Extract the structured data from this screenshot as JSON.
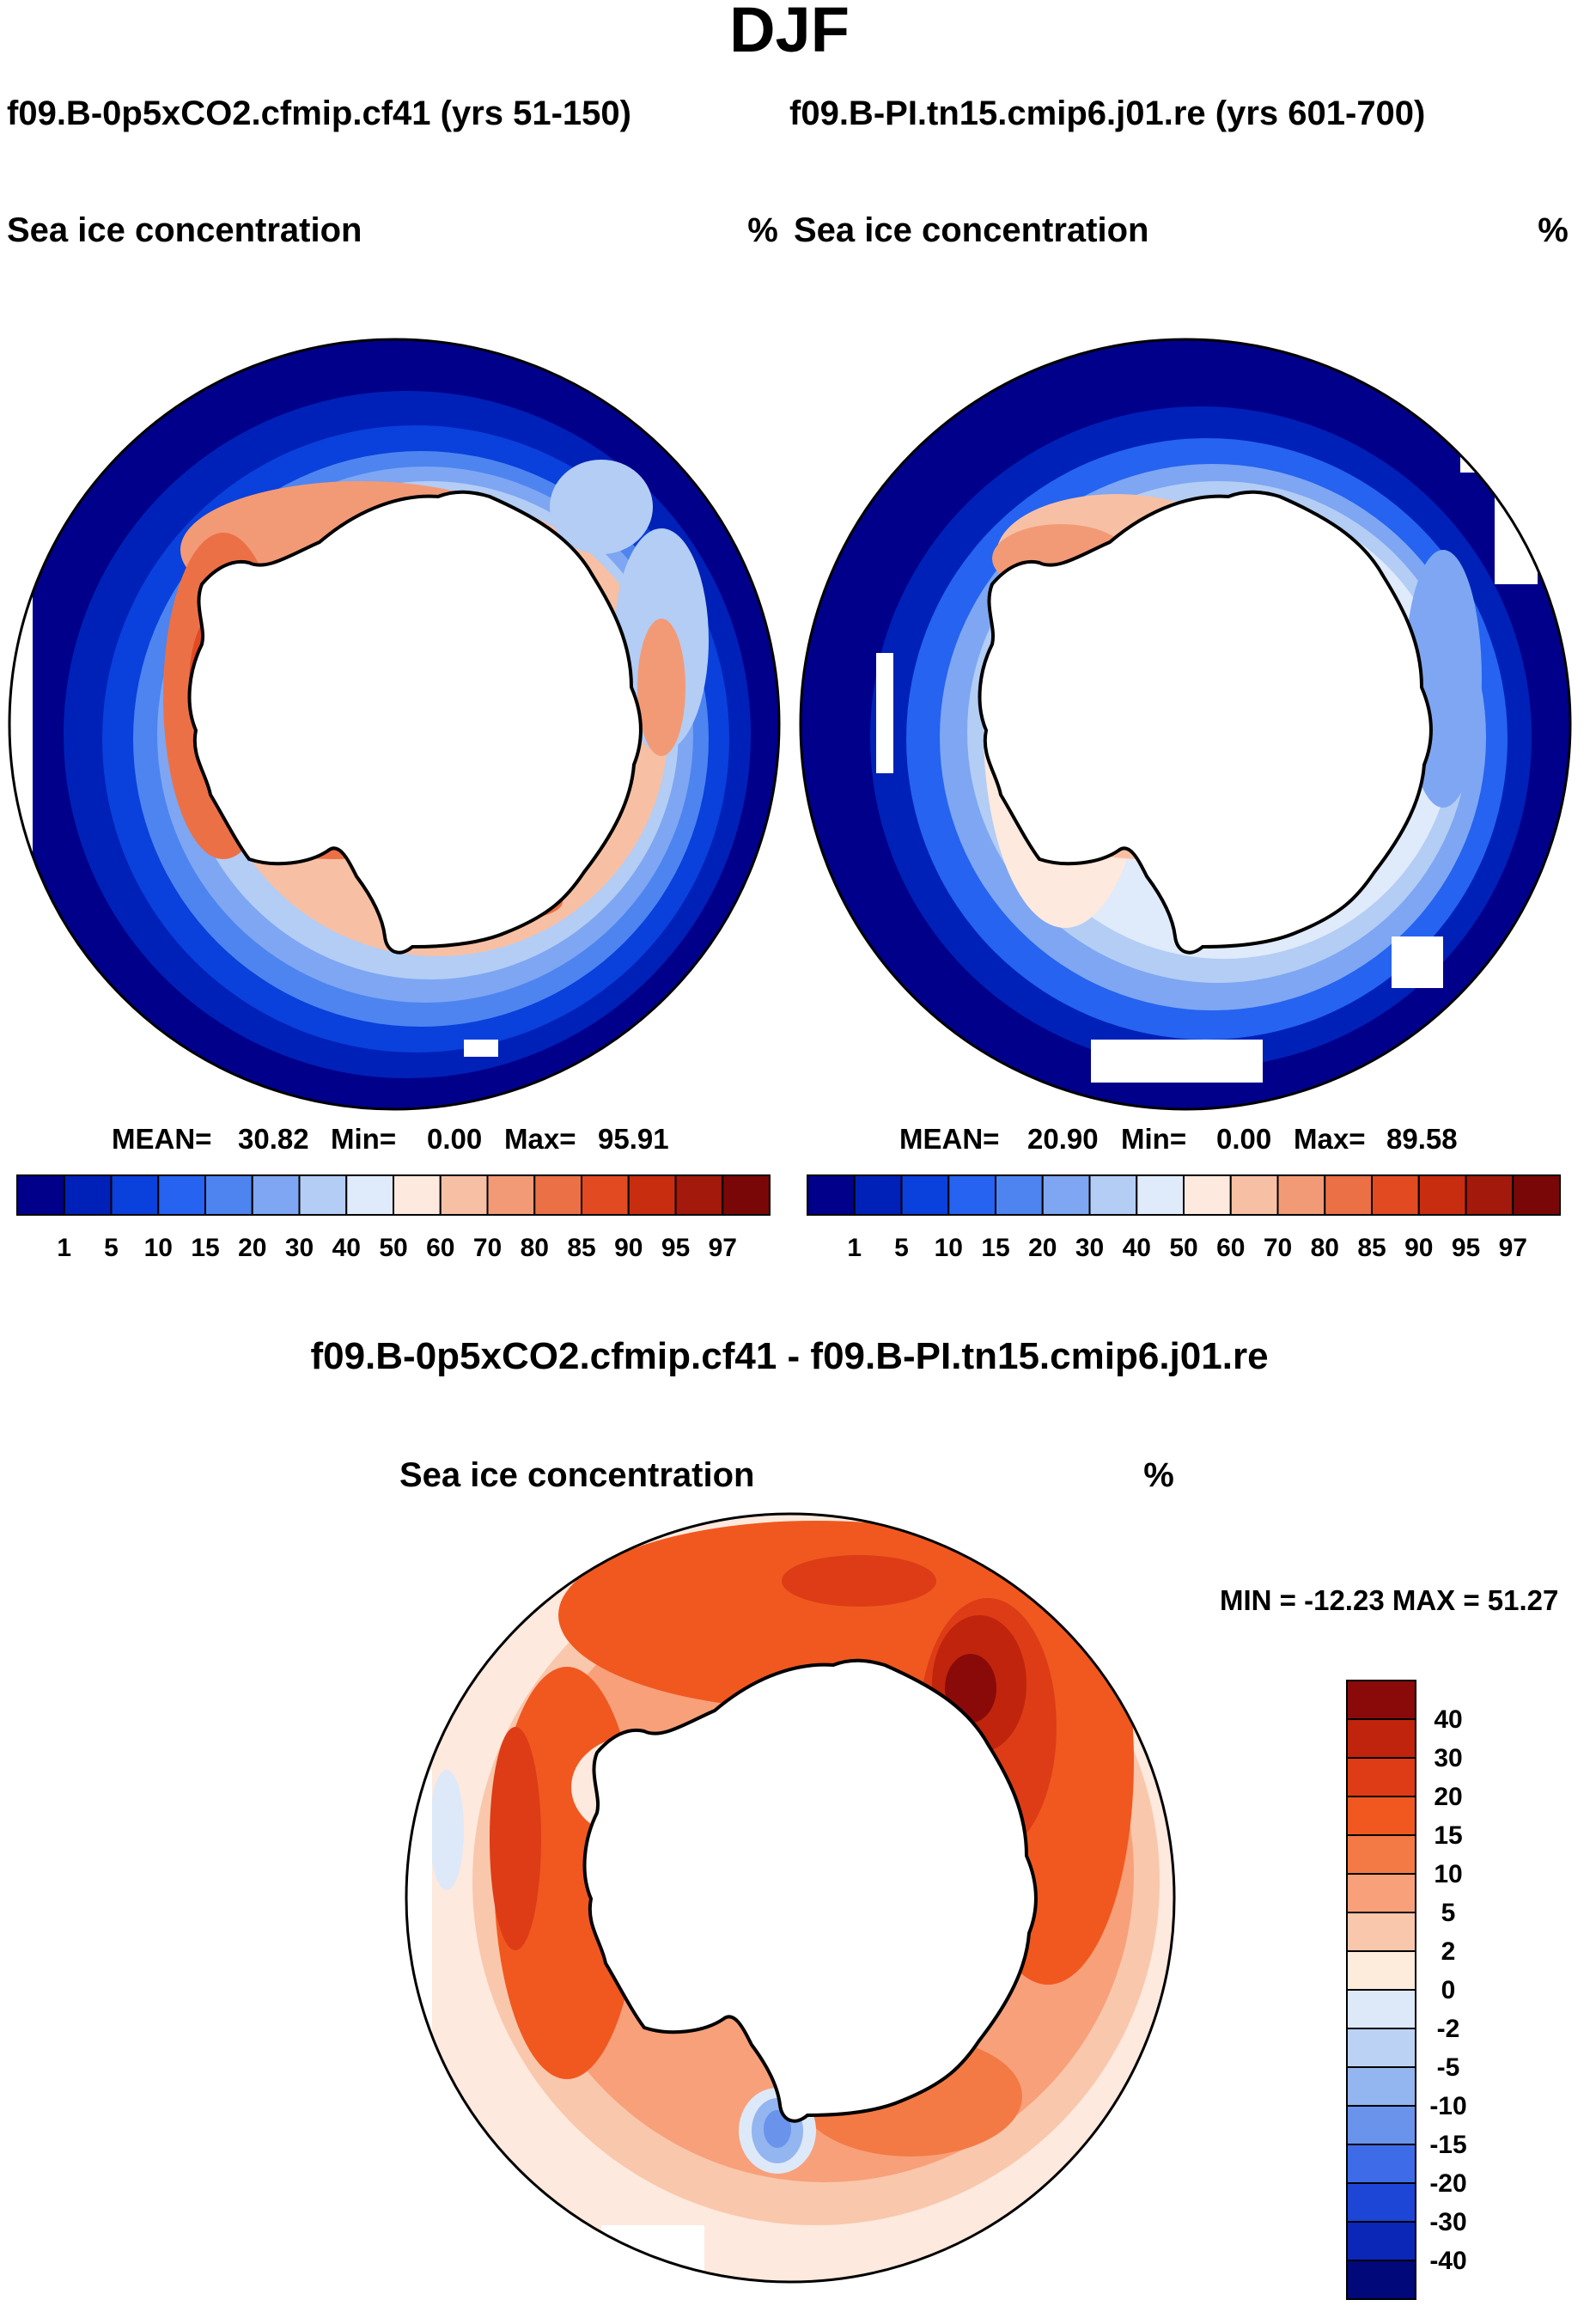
{
  "season": "DJF",
  "run_header": {
    "case": "f09.B-0p5xCO2.cfmip.cf41 (yrs 51-150)",
    "control": "f09.B-PI.tn15.cmip6.j01.re (yrs 601-700)"
  },
  "diff_title": "f09.B-0p5xCO2.cfmip.cf41 - f09.B-PI.tn15.cmip6.j01.re",
  "chart_data": [
    {
      "type": "heatmap",
      "projection": "south-polar-stereographic",
      "title": "Sea ice concentration",
      "units": "%",
      "stats": {
        "mean_label": "MEAN=",
        "mean": "30.82",
        "min_label": "Min=",
        "min": "0.00",
        "max_label": "Max=",
        "max": "95.91"
      },
      "levels": [
        "1",
        "5",
        "10",
        "15",
        "20",
        "30",
        "40",
        "50",
        "60",
        "70",
        "80",
        "85",
        "90",
        "95",
        "97"
      ],
      "colors": [
        "#00008a",
        "#0021b7",
        "#0a40db",
        "#2563f0",
        "#4d84f0",
        "#7ea6f2",
        "#b3cdf5",
        "#dfeafb",
        "#fde9dd",
        "#f7c0a4",
        "#f29a76",
        "#ec7046",
        "#e24a22",
        "#c92d10",
        "#a3190b",
        "#7a0708"
      ]
    },
    {
      "type": "heatmap",
      "projection": "south-polar-stereographic",
      "title": "Sea ice concentration",
      "units": "%",
      "stats": {
        "mean_label": "MEAN=",
        "mean": "20.90",
        "min_label": "Min=",
        "min": "0.00",
        "max_label": "Max=",
        "max": "89.58"
      },
      "levels": [
        "1",
        "5",
        "10",
        "15",
        "20",
        "30",
        "40",
        "50",
        "60",
        "70",
        "80",
        "85",
        "90",
        "95",
        "97"
      ],
      "colors": [
        "#00008a",
        "#0021b7",
        "#0a40db",
        "#2563f0",
        "#4d84f0",
        "#7ea6f2",
        "#b3cdf5",
        "#dfeafb",
        "#fde9dd",
        "#f7c0a4",
        "#f29a76",
        "#ec7046",
        "#e24a22",
        "#c92d10",
        "#a3190b",
        "#7a0708"
      ]
    },
    {
      "type": "heatmap",
      "projection": "south-polar-stereographic",
      "title": "Sea ice concentration",
      "units": "%",
      "stats": {
        "text": "MIN = -12.23 MAX =  51.27"
      },
      "levels": [
        "40",
        "30",
        "20",
        "15",
        "10",
        "5",
        "2",
        "0",
        "-2",
        "-5",
        "-10",
        "-15",
        "-20",
        "-30",
        "-40"
      ],
      "colors": [
        "#8a0a0a",
        "#c0240c",
        "#dd3c16",
        "#f0581f",
        "#f37a45",
        "#f7a07a",
        "#f9c7ac",
        "#fdebdc",
        "#dde9f8",
        "#bcd2f4",
        "#93b5f0",
        "#6a93ec",
        "#3e6be7",
        "#1d45d6",
        "#0b27b8",
        "#00087a"
      ]
    }
  ]
}
